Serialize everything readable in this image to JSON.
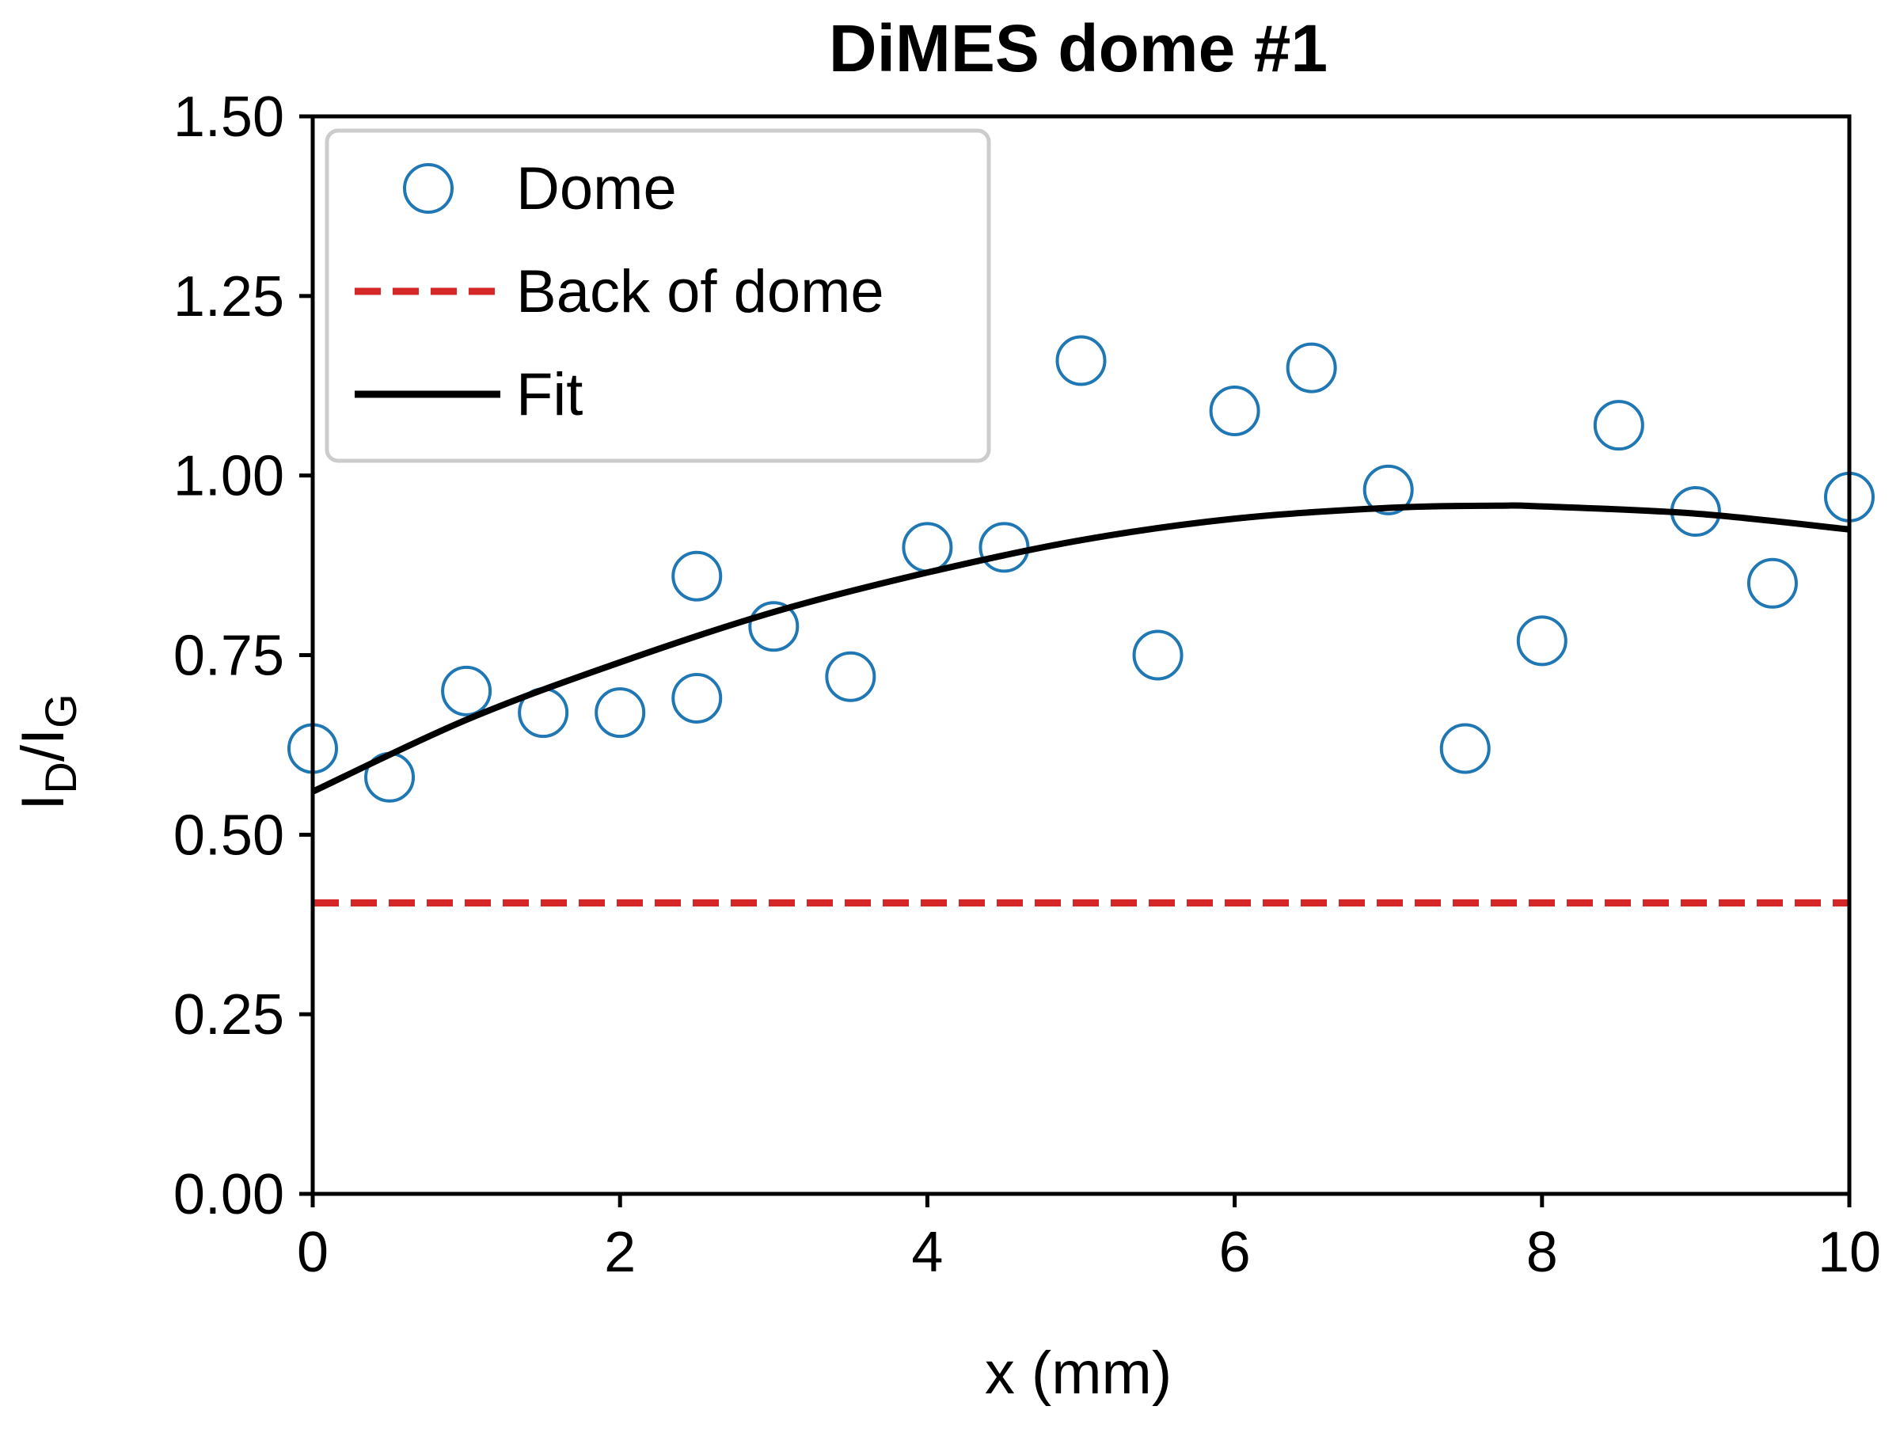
{
  "chart_data": {
    "type": "scatter",
    "title": "DiMES dome #1",
    "xlabel": "x (mm)",
    "ylabel": {
      "base": "I",
      "sub1": "D",
      "sep": "/I",
      "sub2": "G"
    },
    "xlim": [
      0,
      10
    ],
    "ylim": [
      0,
      1.5
    ],
    "xticks": [
      "0",
      "2",
      "4",
      "6",
      "8",
      "10"
    ],
    "yticks": [
      "0.00",
      "0.25",
      "0.50",
      "0.75",
      "1.00",
      "1.25",
      "1.50"
    ],
    "legend_position": "upper-left",
    "series": [
      {
        "name": "Dome",
        "kind": "scatter",
        "marker": "open-circle",
        "color": "#1f77b4",
        "x": [
          0,
          0.5,
          1,
          1.5,
          2,
          2.5,
          2.5,
          3,
          3.5,
          4,
          4.5,
          5,
          5.5,
          6,
          6.5,
          7,
          7.5,
          8,
          8.5,
          9,
          9.5,
          10
        ],
        "y": [
          0.62,
          0.58,
          0.7,
          0.67,
          0.67,
          0.86,
          0.69,
          0.79,
          0.72,
          0.9,
          0.9,
          1.16,
          0.75,
          1.09,
          1.15,
          0.98,
          0.62,
          0.77,
          1.07,
          0.95,
          0.85,
          0.97
        ]
      },
      {
        "name": "Back of dome",
        "kind": "hline",
        "style": "dashed",
        "color": "#d62728",
        "y": 0.405
      },
      {
        "name": "Fit",
        "kind": "line",
        "style": "solid",
        "color": "#000000",
        "x": [
          0,
          1,
          2,
          3,
          4,
          5,
          6,
          7,
          7.7,
          8,
          9,
          10
        ],
        "y": [
          0.56,
          0.66,
          0.74,
          0.81,
          0.865,
          0.91,
          0.94,
          0.955,
          0.958,
          0.957,
          0.947,
          0.925
        ]
      }
    ]
  }
}
